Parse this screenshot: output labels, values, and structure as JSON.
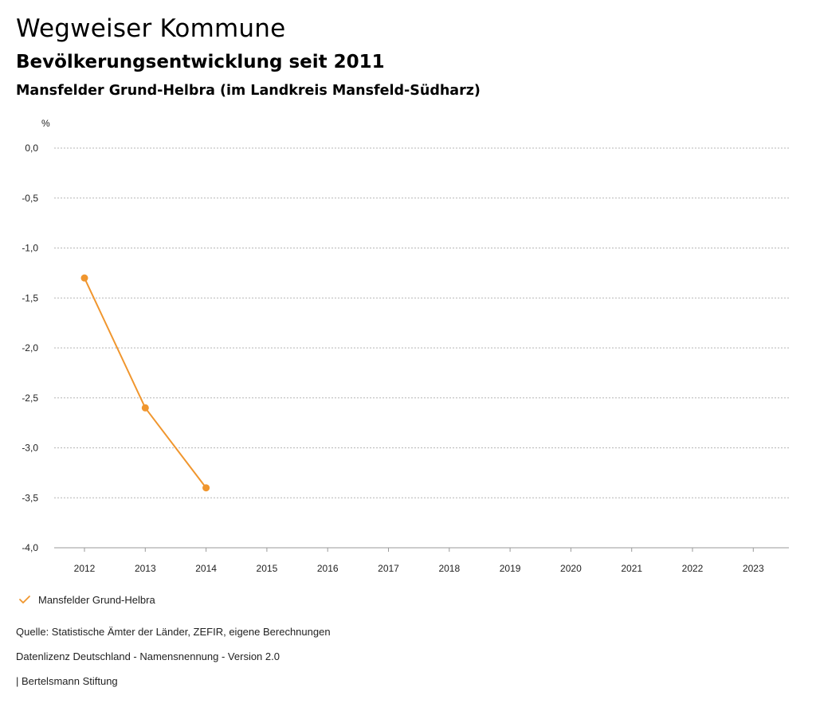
{
  "header": {
    "title": "Wegweiser Kommune",
    "subtitle": "Bevölkerungsentwicklung seit 2011",
    "region": "Mansfelder Grund-Helbra (im Landkreis Mansfeld-Südharz)"
  },
  "chart_data": {
    "type": "line",
    "title": "Bevölkerungsentwicklung seit 2011",
    "ylabel": "%",
    "xlabel": "",
    "ylim": [
      -4.0,
      0.0
    ],
    "yticks": [
      0.0,
      -0.5,
      -1.0,
      -1.5,
      -2.0,
      -2.5,
      -3.0,
      -3.5,
      -4.0
    ],
    "ytick_labels": [
      "0,0",
      "-0,5",
      "-1,0",
      "-1,5",
      "-2,0",
      "-2,5",
      "-3,0",
      "-3,5",
      "-4,0"
    ],
    "categories": [
      "2012",
      "2013",
      "2014",
      "2015",
      "2016",
      "2017",
      "2018",
      "2019",
      "2020",
      "2021",
      "2022",
      "2023"
    ],
    "grid": true,
    "series": [
      {
        "name": "Mansfelder Grund-Helbra",
        "color": "#f0962e",
        "values": [
          -1.3,
          -2.6,
          -3.4,
          null,
          null,
          null,
          null,
          null,
          null,
          null,
          null,
          null
        ]
      }
    ]
  },
  "legend": {
    "label": "Mansfelder Grund-Helbra",
    "icon": "checkmark-icon"
  },
  "footer": {
    "source": "Quelle: Statistische Ämter der Länder, ZEFIR, eigene Berechnungen",
    "license": "Datenlizenz Deutschland - Namensnennung - Version 2.0",
    "publisher": "| Bertelsmann Stiftung"
  }
}
